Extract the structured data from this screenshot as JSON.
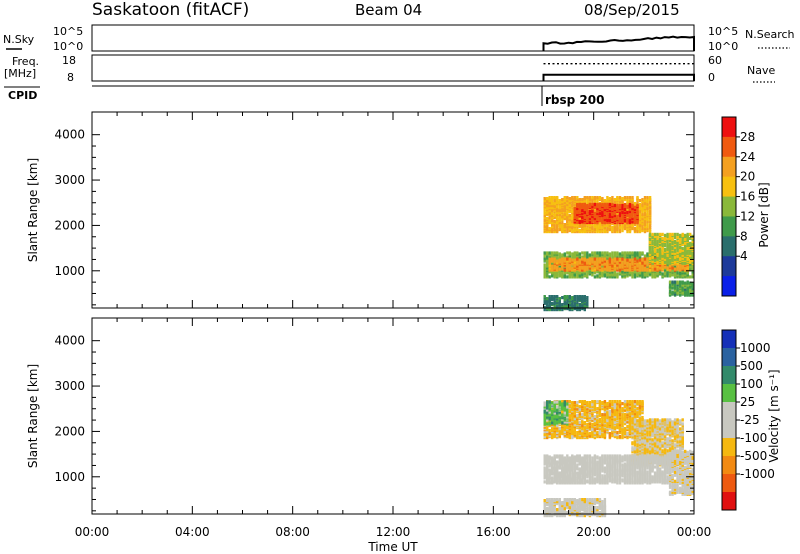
{
  "header": {
    "station": "Saskatoon (fitACF)",
    "beam": "Beam 04",
    "date": "08/Sep/2015"
  },
  "top_panels": {
    "nsky_label": "N.Sky",
    "nsearch_label": "N.Search",
    "nsky_ticks": [
      "10^5",
      "10^0"
    ],
    "nsearch_ticks": [
      "10^5",
      "10^0"
    ],
    "freq_label_1": "Freq.",
    "freq_label_2": "[MHz]",
    "freq_ticks": [
      "18",
      "8"
    ],
    "nave_label": "Nave",
    "nave_ticks": [
      "60",
      "0"
    ],
    "cpid_label": "CPID",
    "cpid_value": "rbsp 200"
  },
  "colorbars": {
    "power": {
      "label": "Power [dB]",
      "ticks": [
        "28",
        "24",
        "20",
        "16",
        "12",
        "8",
        "4"
      ],
      "colors": [
        "#ee1010",
        "#f05a10",
        "#f4a020",
        "#f7c010",
        "#8ab83a",
        "#3f9a4a",
        "#2a6e6c",
        "#1d3a9a",
        "#0a20e8"
      ]
    },
    "velocity": {
      "label": "Velocity [m s⁻¹]",
      "ticks": [
        "1000",
        "500",
        "100",
        "25",
        "-25",
        "-100",
        "-500",
        "-1000"
      ],
      "colors": [
        "#1530b8",
        "#2a62a0",
        "#328a6a",
        "#58c042",
        "#c8c8c0",
        "#c8c8c0",
        "#f5b810",
        "#f28a12",
        "#ee5a10",
        "#e01010"
      ]
    }
  },
  "axes": {
    "xlabel": "Time UT",
    "ylabel": "Slant Range [km]",
    "xticks": [
      "00:00",
      "04:00",
      "08:00",
      "12:00",
      "16:00",
      "20:00",
      "00:00"
    ],
    "yticks": [
      "1000",
      "2000",
      "3000",
      "4000"
    ]
  },
  "chart_data": [
    {
      "type": "line",
      "name": "N.Sky / N.Search",
      "x_hours": [
        18.0,
        18.0,
        19.0,
        20.0,
        21.0,
        22.0,
        23.0,
        24.0
      ],
      "log10_nsky": [
        0.0,
        1.5,
        1.6,
        1.8,
        2.0,
        2.3,
        2.6,
        2.7
      ],
      "ylim": [
        0,
        5
      ]
    },
    {
      "type": "line",
      "name": "Freq. / Nave",
      "x_hours": [
        18.0,
        24.0
      ],
      "freq_mhz": [
        10.4,
        10.4
      ],
      "nave": [
        40,
        40
      ],
      "freq_ylim": [
        8,
        18
      ],
      "nave_ylim": [
        0,
        60
      ]
    },
    {
      "type": "heatmap",
      "parameter": "power",
      "units": "dB",
      "xlim": [
        0,
        24
      ],
      "ylim": [
        180,
        4500
      ],
      "zlim": [
        0,
        30
      ],
      "regions": [
        {
          "t": [
            18.0,
            22.3
          ],
          "range": [
            1900,
            2650
          ],
          "value": 20
        },
        {
          "t": [
            19.2,
            21.8
          ],
          "range": [
            2100,
            2500
          ],
          "value": 26
        },
        {
          "t": [
            18.0,
            24.0
          ],
          "range": [
            900,
            1450
          ],
          "value": 14
        },
        {
          "t": [
            18.2,
            23.8
          ],
          "range": [
            1050,
            1300
          ],
          "value": 22
        },
        {
          "t": [
            22.2,
            24.0
          ],
          "range": [
            1200,
            1850
          ],
          "value": 16
        },
        {
          "t": [
            18.0,
            19.8
          ],
          "range": [
            180,
            480
          ],
          "value": 9
        },
        {
          "t": [
            23.0,
            24.0
          ],
          "range": [
            500,
            800
          ],
          "value": 12
        }
      ]
    },
    {
      "type": "heatmap",
      "parameter": "velocity",
      "units": "m s-1",
      "xlim": [
        0,
        24
      ],
      "ylim": [
        180,
        4500
      ],
      "zlim": [
        -1000,
        1000
      ],
      "regions": [
        {
          "t": [
            18.0,
            22.0
          ],
          "range": [
            1900,
            2700
          ],
          "value": -300
        },
        {
          "t": [
            21.5,
            23.6
          ],
          "range": [
            1300,
            2300
          ],
          "value": -200
        },
        {
          "t": [
            23.0,
            24.0
          ],
          "range": [
            650,
            1600
          ],
          "value": -100
        },
        {
          "t": [
            18.0,
            23.0
          ],
          "range": [
            900,
            1500
          ],
          "value": 0
        },
        {
          "t": [
            18.0,
            19.0
          ],
          "range": [
            2200,
            2700
          ],
          "value": 300
        },
        {
          "t": [
            18.0,
            20.5
          ],
          "range": [
            180,
            550
          ],
          "value": -80
        }
      ]
    }
  ]
}
